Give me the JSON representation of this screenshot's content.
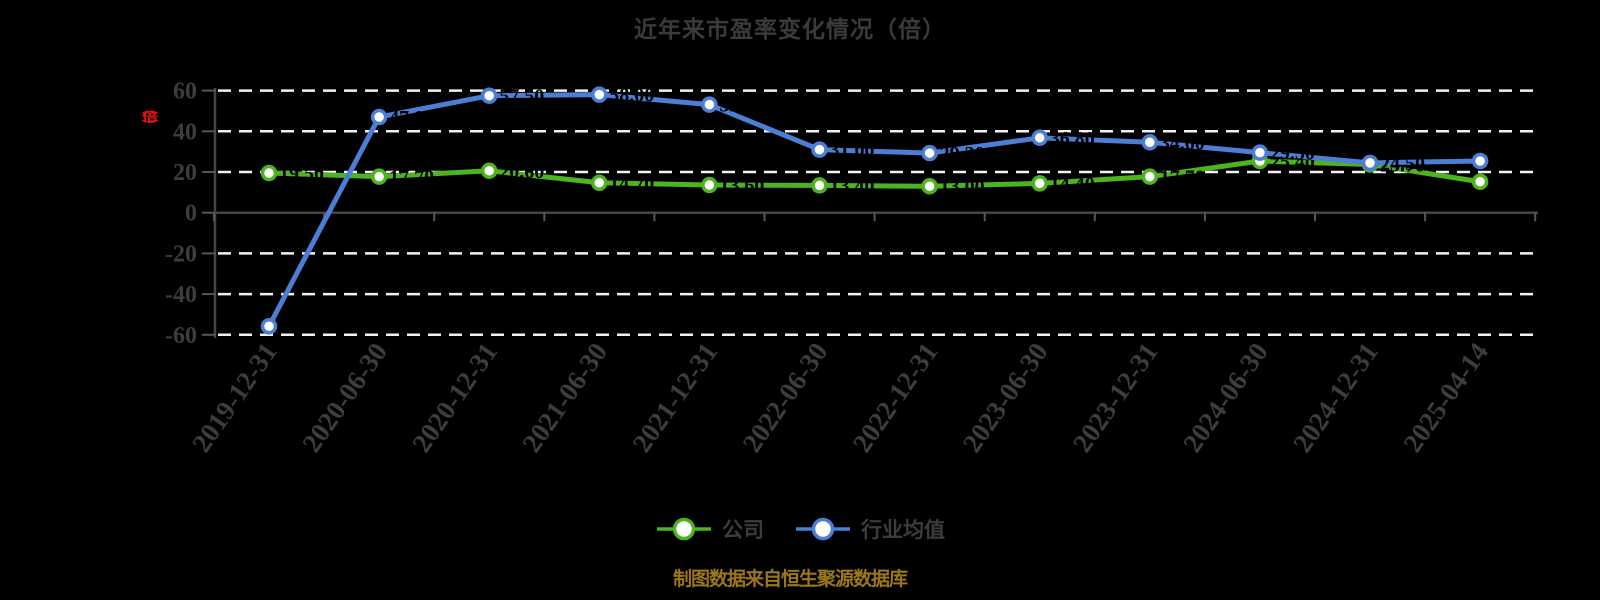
{
  "chart_data": {
    "type": "line",
    "title": "近年来市盈率变化情况（倍）",
    "y_unit": "（倍）",
    "footer": "制图数据来自恒生聚源数据库",
    "categories": [
      "2019-12-31",
      "2020-06-30",
      "2020-12-31",
      "2021-06-30",
      "2021-12-31",
      "2022-06-30",
      "2022-12-31",
      "2023-06-30",
      "2023-12-31",
      "2024-06-30",
      "2024-12-31",
      "2025-04-14"
    ],
    "series": [
      {
        "name": "公司",
        "color": "#4db31e",
        "values": [
          19.5,
          17.7,
          20.6,
          14.7,
          13.6,
          13.4,
          13.0,
          14.4,
          17.7,
          25.4,
          23.7,
          15.2
        ]
      },
      {
        "name": "行业均值",
        "color": "#4c7ed6",
        "values": [
          -55.8,
          47.0,
          57.5,
          58.0,
          53.1,
          31.0,
          29.3,
          36.8,
          34.6,
          29.5,
          24.5,
          25.4
        ]
      }
    ],
    "y_ticks": [
      60,
      40,
      20,
      0,
      -20,
      -40,
      -60
    ],
    "ylim": [
      -60,
      60
    ],
    "grid": "horizontal-dashed",
    "legend_position": "bottom"
  },
  "colors": {
    "background": "#000000",
    "grid": "#f1f1f1",
    "axis": "#454545",
    "tick": "#575757",
    "axis_label": "#3d3d3d",
    "title": "#3a3a3a",
    "company_green": "#4db31e",
    "industry_blue": "#4c7ed6",
    "unit_red": "#ee1111",
    "footer_gold": "#9b771a",
    "marker_fill": "#ffffff",
    "data_label": "#000000"
  }
}
